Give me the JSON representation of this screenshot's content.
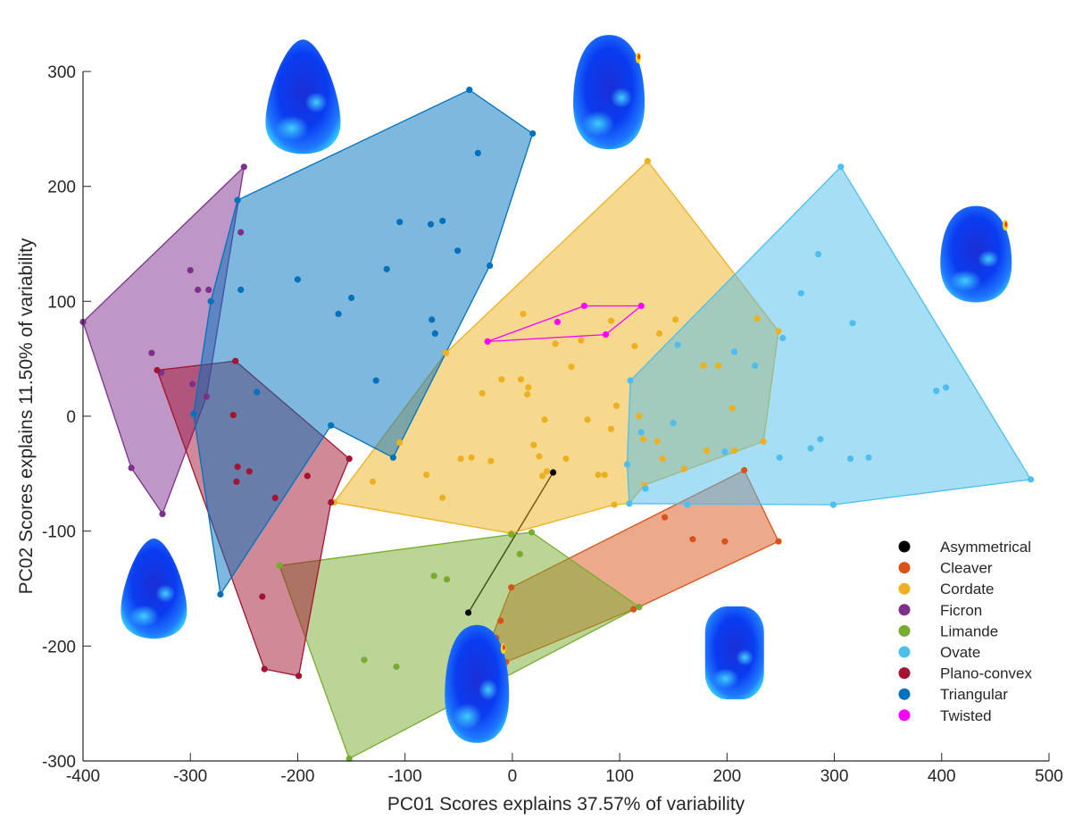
{
  "chart_data": {
    "type": "scatter",
    "xlabel": "PC01 Scores explains 37.57% of variability",
    "ylabel": "PC02 Scores explains 11.50% of variability",
    "xlim": [
      -400,
      500
    ],
    "ylim": [
      -300,
      300
    ],
    "xticks": [
      -400,
      -300,
      -200,
      -100,
      0,
      100,
      200,
      300,
      400,
      500
    ],
    "yticks": [
      -300,
      -200,
      -100,
      0,
      100,
      200,
      300
    ],
    "legend_position": "bottom-right",
    "overlay": "convex hull polygon per category with translucent fill; shape-variability meshes at PC extremes",
    "series": [
      {
        "name": "Asymmetrical",
        "color": "#000000",
        "points": [
          [
            38,
            -49
          ],
          [
            -41,
            -171
          ]
        ],
        "hull": [
          [
            38,
            -49
          ],
          [
            -41,
            -171
          ]
        ]
      },
      {
        "name": "Cleaver",
        "color": "#D95319",
        "points": [
          [
            216,
            -47
          ],
          [
            248,
            -109
          ],
          [
            142,
            -88
          ],
          [
            168,
            -107
          ],
          [
            198,
            -109
          ],
          [
            113,
            -168
          ],
          [
            118,
            -166
          ],
          [
            -1,
            -149
          ],
          [
            -11,
            -178
          ],
          [
            -15,
            -193
          ],
          [
            -26,
            -209
          ],
          [
            -6,
            -214
          ]
        ],
        "hull": [
          [
            216,
            -47
          ],
          [
            248,
            -109
          ],
          [
            118,
            -166
          ],
          [
            113,
            -168
          ],
          [
            -6,
            -214
          ],
          [
            -26,
            -209
          ],
          [
            -1,
            -149
          ]
        ]
      },
      {
        "name": "Cordate",
        "color": "#EDB120",
        "points": [
          [
            126,
            222
          ],
          [
            248,
            74
          ],
          [
            234,
            -22
          ],
          [
            123,
            -60
          ],
          [
            109,
            -76
          ],
          [
            95,
            -77
          ],
          [
            -1,
            -102
          ],
          [
            -166,
            -75
          ],
          [
            -130,
            -57
          ],
          [
            -62,
            55
          ],
          [
            64,
            66
          ],
          [
            92,
            83
          ],
          [
            114,
            61
          ],
          [
            137,
            72
          ],
          [
            152,
            84
          ],
          [
            178,
            44
          ],
          [
            192,
            44
          ],
          [
            205,
            7
          ],
          [
            228,
            85
          ],
          [
            181,
            -30
          ],
          [
            207,
            -30
          ],
          [
            -105,
            -23
          ],
          [
            -80,
            -51
          ],
          [
            -65,
            -71
          ],
          [
            -48,
            -37
          ],
          [
            -38,
            -36
          ],
          [
            -28,
            20
          ],
          [
            -20,
            -39
          ],
          [
            -10,
            32
          ],
          [
            10,
            89
          ],
          [
            8,
            32
          ],
          [
            14,
            19
          ],
          [
            15,
            25
          ],
          [
            20,
            -25
          ],
          [
            25,
            -35
          ],
          [
            28,
            -52
          ],
          [
            30,
            -3
          ],
          [
            32,
            -48
          ],
          [
            40,
            63
          ],
          [
            50,
            -37
          ],
          [
            55,
            43
          ],
          [
            70,
            -3
          ],
          [
            80,
            -51
          ],
          [
            86,
            -51
          ],
          [
            92,
            -11
          ],
          [
            97,
            9
          ],
          [
            118,
            0
          ],
          [
            122,
            -20
          ],
          [
            135,
            -22
          ],
          [
            140,
            -37
          ],
          [
            160,
            -46
          ]
        ],
        "hull": [
          [
            126,
            222
          ],
          [
            248,
            74
          ],
          [
            234,
            -22
          ],
          [
            123,
            -60
          ],
          [
            109,
            -76
          ],
          [
            95,
            -77
          ],
          [
            -1,
            -102
          ],
          [
            -166,
            -75
          ],
          [
            -62,
            55
          ]
        ]
      },
      {
        "name": "Ficron",
        "color": "#7E2F8E",
        "points": [
          [
            -250,
            217
          ],
          [
            -253,
            160
          ],
          [
            -300,
            127
          ],
          [
            -293,
            110
          ],
          [
            -283,
            110
          ],
          [
            -400,
            82
          ],
          [
            -336,
            55
          ],
          [
            -327,
            38
          ],
          [
            -298,
            28
          ],
          [
            -285,
            17
          ],
          [
            -355,
            -45
          ],
          [
            -326,
            -85
          ]
        ],
        "hull": [
          [
            -250,
            217
          ],
          [
            -285,
            17
          ],
          [
            -326,
            -85
          ],
          [
            -355,
            -45
          ],
          [
            -400,
            82
          ]
        ]
      },
      {
        "name": "Limande",
        "color": "#77AC30",
        "points": [
          [
            18,
            -101
          ],
          [
            -1,
            -103
          ],
          [
            -217,
            -130
          ],
          [
            -152,
            -298
          ],
          [
            118,
            -166
          ],
          [
            -73,
            -139
          ],
          [
            -61,
            -142
          ],
          [
            -32,
            -186
          ],
          [
            7,
            -120
          ],
          [
            -138,
            -212
          ],
          [
            -108,
            -218
          ]
        ],
        "hull": [
          [
            18,
            -101
          ],
          [
            118,
            -166
          ],
          [
            -152,
            -298
          ],
          [
            -217,
            -130
          ],
          [
            -1,
            -103
          ]
        ]
      },
      {
        "name": "Ovate",
        "color": "#4DBEEE",
        "points": [
          [
            306,
            217
          ],
          [
            483,
            -55
          ],
          [
            299,
            -77
          ],
          [
            109,
            -76
          ],
          [
            107,
            -42
          ],
          [
            110,
            31
          ],
          [
            285,
            141
          ],
          [
            269,
            107
          ],
          [
            317,
            81
          ],
          [
            395,
            22
          ],
          [
            404,
            25
          ],
          [
            287,
            -20
          ],
          [
            278,
            -28
          ],
          [
            315,
            -37
          ],
          [
            332,
            -36
          ],
          [
            252,
            68
          ],
          [
            249,
            -36
          ],
          [
            207,
            56
          ],
          [
            154,
            62
          ],
          [
            120,
            -14
          ],
          [
            150,
            -6
          ],
          [
            124,
            -63
          ],
          [
            163,
            -77
          ],
          [
            198,
            -31
          ],
          [
            226,
            44
          ]
        ],
        "hull": [
          [
            306,
            217
          ],
          [
            483,
            -55
          ],
          [
            299,
            -77
          ],
          [
            109,
            -76
          ],
          [
            107,
            -42
          ],
          [
            110,
            31
          ]
        ]
      },
      {
        "name": "Plano-convex",
        "color": "#A2142F",
        "points": [
          [
            -331,
            40
          ],
          [
            -258,
            48
          ],
          [
            -152,
            -37
          ],
          [
            -169,
            -75
          ],
          [
            -199,
            -226
          ],
          [
            -231,
            -220
          ],
          [
            -233,
            -157
          ],
          [
            -260,
            1
          ],
          [
            -256,
            -44
          ],
          [
            -257,
            -57
          ],
          [
            -245,
            -48
          ],
          [
            -221,
            -71
          ],
          [
            -191,
            -52
          ]
        ],
        "hull": [
          [
            -331,
            40
          ],
          [
            -258,
            48
          ],
          [
            -152,
            -37
          ],
          [
            -169,
            -75
          ],
          [
            -199,
            -226
          ],
          [
            -231,
            -220
          ]
        ]
      },
      {
        "name": "Triangular",
        "color": "#0072BD",
        "points": [
          [
            -40,
            284
          ],
          [
            19,
            246
          ],
          [
            -21,
            131
          ],
          [
            -111,
            -36
          ],
          [
            -169,
            -8
          ],
          [
            -272,
            -155
          ],
          [
            -256,
            188
          ],
          [
            -281,
            100
          ],
          [
            -297,
            2
          ],
          [
            -32,
            229
          ],
          [
            -105,
            169
          ],
          [
            -76,
            167
          ],
          [
            -65,
            170
          ],
          [
            -51,
            144
          ],
          [
            -75,
            84
          ],
          [
            -72,
            72
          ],
          [
            -117,
            128
          ],
          [
            -150,
            103
          ],
          [
            -162,
            89
          ],
          [
            -200,
            119
          ],
          [
            -127,
            31
          ],
          [
            -253,
            110
          ],
          [
            -238,
            21
          ]
        ],
        "hull": [
          [
            -40,
            284
          ],
          [
            19,
            246
          ],
          [
            -21,
            131
          ],
          [
            -111,
            -36
          ],
          [
            -169,
            -8
          ],
          [
            -272,
            -155
          ],
          [
            -297,
            2
          ],
          [
            -281,
            100
          ],
          [
            -256,
            188
          ]
        ]
      },
      {
        "name": "Twisted",
        "color": "#FF00FF",
        "points": [
          [
            -23,
            65
          ],
          [
            67,
            96
          ],
          [
            120,
            96
          ],
          [
            87,
            71
          ],
          [
            42,
            82
          ]
        ],
        "hull": [
          [
            -23,
            65
          ],
          [
            67,
            96
          ],
          [
            120,
            96
          ],
          [
            87,
            71
          ]
        ]
      }
    ],
    "meshes": [
      {
        "name": "mesh-pc2-max-left",
        "shape": "teardrop",
        "cx": -195,
        "cy": 278,
        "rx": 42,
        "ry": 64,
        "hot": false
      },
      {
        "name": "mesh-pc2-max-right",
        "shape": "egg",
        "cx": 90,
        "cy": 282,
        "rx": 40,
        "ry": 64,
        "hot": true
      },
      {
        "name": "mesh-pc1-max",
        "shape": "egg",
        "cx": 432,
        "cy": 141,
        "rx": 40,
        "ry": 54,
        "hot": true
      },
      {
        "name": "mesh-pc1-min",
        "shape": "teardrop",
        "cx": -334,
        "cy": -150,
        "rx": 37,
        "ry": 56,
        "hot": false
      },
      {
        "name": "mesh-pc2-min-left",
        "shape": "egg",
        "cx": -33,
        "cy": -233,
        "rx": 36,
        "ry": 66,
        "hot": true
      },
      {
        "name": "mesh-pc2-min-right",
        "shape": "rect",
        "cx": 207,
        "cy": -206,
        "rx": 33,
        "ry": 52,
        "hot": false
      }
    ]
  }
}
